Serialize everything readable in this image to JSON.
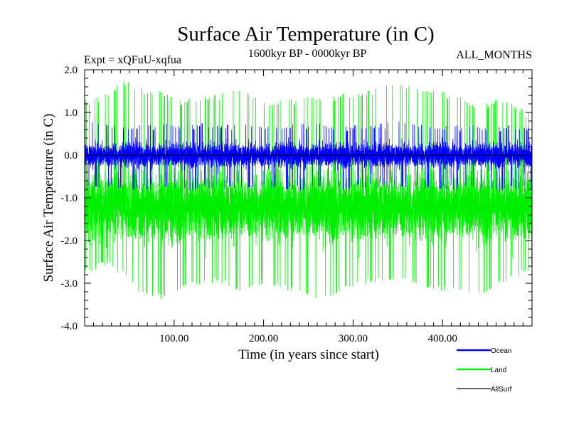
{
  "chart_data": {
    "type": "line",
    "title": "Surface Air Temperature (in C)",
    "subtitle_left": "Expt = xQFuU-xqfua",
    "subtitle_center": "1600kyr BP - 0000kyr BP",
    "subtitle_right": "ALL_MONTHS",
    "xlabel": "Time (in years since start)",
    "ylabel": "Surface Air Temperature (in C)",
    "xlim": [
      0,
      500
    ],
    "ylim": [
      -4.0,
      2.0
    ],
    "x_ticks": [
      100,
      200,
      300,
      400
    ],
    "x_tick_labels": [
      "100.00",
      "200.00",
      "300.00",
      "400.00"
    ],
    "y_ticks": [
      2.0,
      1.0,
      0.0,
      -1.0,
      -2.0,
      -3.0,
      -4.0
    ],
    "y_tick_labels": [
      "2.0",
      "1.0",
      "0.0",
      "-1.0",
      "-2.0",
      "-3.0",
      "-4.0"
    ],
    "legend_position": "bottom-right",
    "series": [
      {
        "name": "Land",
        "color": "#00ee00",
        "samples_per_year": 12,
        "envelope_x": [
          0,
          25,
          45,
          60,
          85,
          110,
          150,
          175,
          205,
          260,
          300,
          350,
          400,
          440,
          470,
          500
        ],
        "envelope_max": [
          1.3,
          1.45,
          1.8,
          1.6,
          1.5,
          1.3,
          1.45,
          1.55,
          1.25,
          1.4,
          1.45,
          1.7,
          1.5,
          1.2,
          1.35,
          0.95
        ],
        "envelope_min": [
          -2.8,
          -2.6,
          -2.9,
          -3.2,
          -3.4,
          -3.1,
          -3.0,
          -3.2,
          -3.0,
          -3.45,
          -3.1,
          -2.9,
          -3.2,
          -3.3,
          -3.0,
          -2.7
        ],
        "mean": -1.2,
        "spread": 0.55
      },
      {
        "name": "Ocean",
        "color": "#0000ff",
        "samples_per_year": 12,
        "envelope_x": [
          0,
          50,
          100,
          150,
          200,
          250,
          300,
          350,
          400,
          450,
          500
        ],
        "envelope_max": [
          0.8,
          0.7,
          0.75,
          0.75,
          0.7,
          0.75,
          0.7,
          0.8,
          0.7,
          0.7,
          0.7
        ],
        "envelope_min": [
          -0.75,
          -0.8,
          -0.85,
          -0.8,
          -0.75,
          -0.85,
          -0.8,
          -0.75,
          -0.8,
          -0.85,
          -0.8
        ],
        "mean": 0.0,
        "spread": 0.2
      },
      {
        "name": "AllSurf",
        "color": "#000000",
        "samples_per_year": 1,
        "constant": 0.0
      }
    ],
    "legend": [
      {
        "name": "Ocean",
        "color": "#0000ff"
      },
      {
        "name": "Land",
        "color": "#00ee00"
      },
      {
        "name": "AllSurf",
        "color": "#000000"
      }
    ]
  }
}
